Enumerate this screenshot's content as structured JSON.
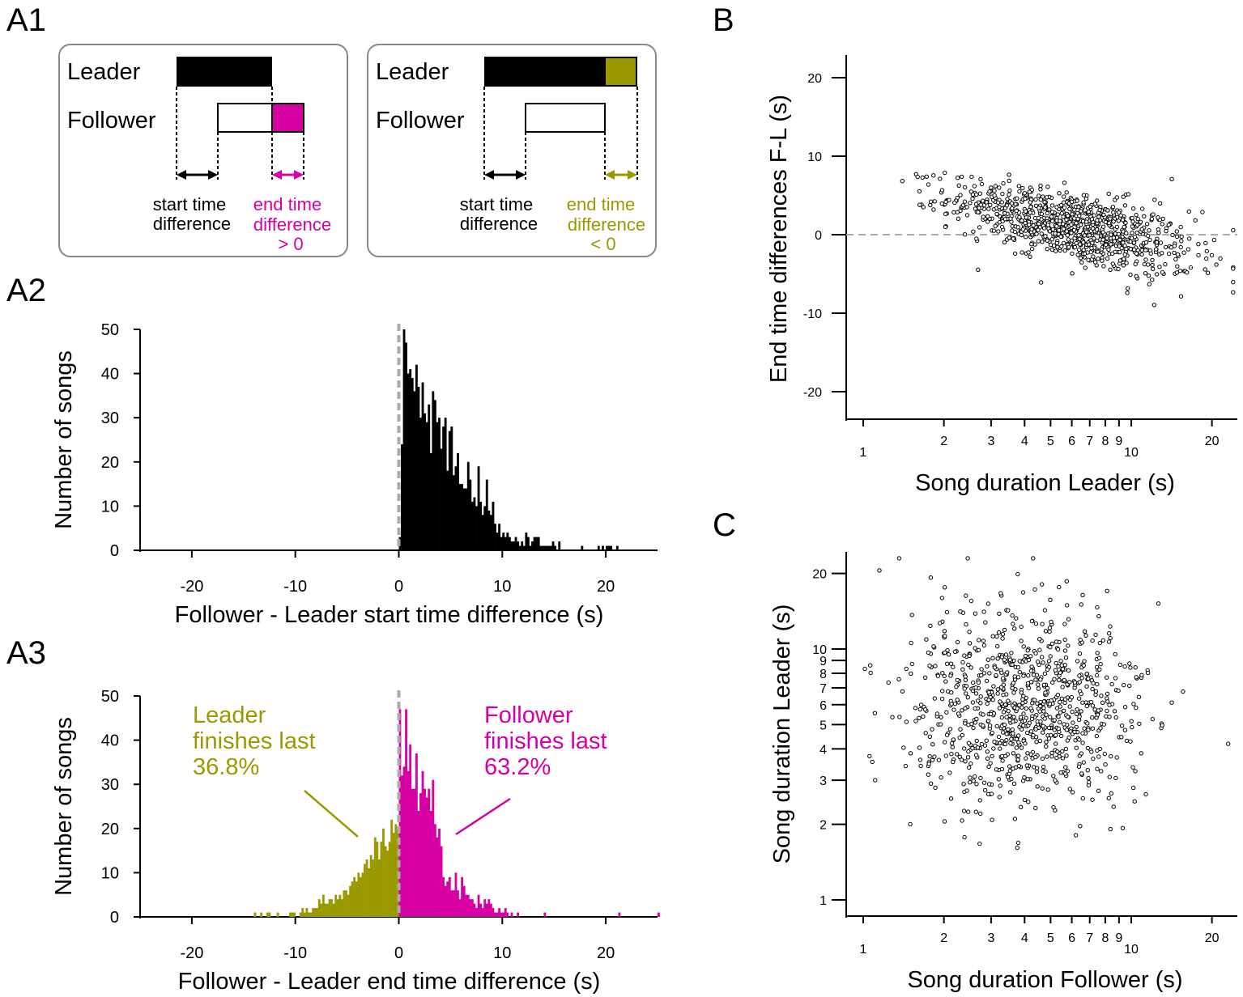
{
  "colors": {
    "olive": "#9a9a00",
    "magenta": "#d600a5",
    "gray": "#aaaaaa",
    "black": "#000000",
    "box": "#888888"
  },
  "panels": {
    "a1": "A1",
    "a2": "A2",
    "a3": "A3",
    "b": "B",
    "c": "C"
  },
  "a1": {
    "left": {
      "leader": "Leader",
      "follower": "Follower",
      "start1": "start time",
      "start2": "difference",
      "end1": "end time",
      "end2": "difference",
      "end3": "> 0"
    },
    "right": {
      "leader": "Leader",
      "follower": "Follower",
      "start1": "start time",
      "start2": "difference",
      "end1": "end time",
      "end2": "difference",
      "end3": "< 0"
    }
  },
  "a3_annotations": {
    "leader1": "Leader",
    "leader2": "finishes last",
    "leader3": "36.8%",
    "follower1": "Follower",
    "follower2": "finishes last",
    "follower3": "63.2%"
  },
  "chart_data": [
    {
      "id": "A2",
      "type": "bar",
      "xlabel": "Follower - Leader start time difference (s)",
      "ylabel": "Number of songs",
      "xlim": [
        -25,
        25
      ],
      "ylim": [
        0,
        50
      ],
      "xticks": [
        -20,
        -10,
        0,
        10,
        20
      ],
      "yticks": [
        0,
        10,
        20,
        30,
        40,
        50
      ],
      "bin_width": 0.2,
      "bin_start": 0,
      "values": [
        3,
        24,
        50,
        47,
        40,
        41,
        39,
        36,
        42,
        37,
        30,
        38,
        31,
        29,
        33,
        22,
        36,
        34,
        29,
        30,
        23,
        28,
        30,
        18,
        27,
        28,
        17,
        19,
        22,
        15,
        15,
        14,
        14,
        20,
        16,
        11,
        12,
        10,
        19,
        11,
        8,
        10,
        16,
        9,
        8,
        11,
        6,
        4,
        6,
        3,
        4,
        3,
        4,
        3,
        2,
        2,
        3,
        2,
        1,
        2,
        1,
        4,
        3,
        1,
        2,
        3,
        3,
        3,
        1,
        1,
        1,
        1,
        1,
        1,
        2,
        1,
        0,
        2,
        0,
        0,
        0,
        0,
        0,
        0,
        0,
        0,
        0,
        0,
        1,
        0,
        0,
        0,
        0,
        0,
        0,
        0,
        1,
        0,
        1,
        0,
        1,
        1,
        1,
        0,
        0,
        1
      ],
      "color": "#000000",
      "zero_line": true
    },
    {
      "id": "A3",
      "type": "bar",
      "xlabel": "Follower - Leader end time difference (s)",
      "ylabel": "Number of songs",
      "xlim": [
        -25,
        25
      ],
      "ylim": [
        0,
        50
      ],
      "xticks": [
        -20,
        -10,
        0,
        10,
        20
      ],
      "yticks": [
        0,
        10,
        20,
        30,
        40,
        50
      ],
      "bin_width": 0.2,
      "negative": {
        "bin_start": -14,
        "color": "#9a9a00",
        "values": [
          1,
          0,
          0,
          1,
          0,
          0,
          1,
          1,
          0,
          0,
          0,
          1,
          0,
          0,
          0,
          0,
          0,
          1,
          1,
          1,
          0,
          0,
          1,
          2,
          1,
          2,
          1,
          1,
          2,
          2,
          2,
          4,
          3,
          5,
          3,
          3,
          4,
          4,
          3,
          5,
          4,
          5,
          4,
          6,
          6,
          5,
          7,
          8,
          9,
          8,
          10,
          9,
          10,
          12,
          13,
          11,
          14,
          13,
          18,
          17,
          13,
          17,
          20,
          16,
          15,
          17,
          22,
          19,
          21,
          20
        ]
      },
      "positive": {
        "bin_start": 0,
        "color": "#d600a5",
        "values": [
          47,
          32,
          34,
          47,
          33,
          39,
          29,
          29,
          37,
          24,
          28,
          33,
          29,
          27,
          29,
          24,
          31,
          21,
          18,
          20,
          16,
          9,
          7,
          8,
          9,
          6,
          6,
          10,
          6,
          4,
          9,
          7,
          5,
          5,
          4,
          4,
          3,
          2,
          5,
          3,
          2,
          4,
          3,
          4,
          3,
          2,
          1,
          1,
          2,
          1,
          1,
          2,
          1,
          0,
          1,
          0,
          0,
          1,
          0,
          0,
          0,
          0,
          0,
          0,
          0,
          0,
          0,
          0,
          0,
          0,
          1,
          0,
          0,
          0,
          0,
          0,
          0,
          0,
          0,
          0,
          0,
          0,
          0,
          0,
          0,
          0,
          0,
          0,
          0,
          0,
          0,
          0,
          0,
          0,
          0,
          0,
          0,
          0,
          0,
          0,
          0,
          0,
          0,
          0,
          0,
          0,
          1,
          0,
          0,
          0,
          0,
          0,
          0,
          0,
          0,
          0,
          0,
          0,
          0,
          0,
          0,
          0,
          0,
          0,
          0,
          1
        ]
      },
      "zero_line": true
    },
    {
      "id": "B",
      "type": "scatter",
      "xlabel": "Song duration Leader (s)",
      "ylabel": "End time differences F-L (s)",
      "xscale": "log",
      "xlim": [
        0.95,
        24
      ],
      "ylim": [
        -24,
        23
      ],
      "xticks": [
        1,
        2,
        3,
        4,
        5,
        6,
        7,
        8,
        9,
        10,
        20
      ],
      "xtick_labels": [
        "1",
        "2",
        "3",
        "4",
        "5",
        "6",
        "7",
        "8",
        "9",
        "10",
        "20"
      ],
      "yticks": [
        -20,
        -10,
        0,
        10,
        20
      ],
      "zero_line": true,
      "distribution": {
        "n": 950,
        "x_median": 6.0,
        "x_log_sd": 0.52,
        "y_center": "1 - 3.4*log(x/6)",
        "y_sd": "1.8 + 0.35*(x/6)"
      }
    },
    {
      "id": "C",
      "type": "scatter",
      "xlabel": "Song duration Follower (s)",
      "ylabel": "Song duration Leader (s)",
      "xscale": "log",
      "yscale": "log",
      "xlim": [
        0.93,
        24
      ],
      "ylim": [
        0.9,
        24
      ],
      "xticks": [
        1,
        2,
        3,
        4,
        5,
        6,
        7,
        8,
        9,
        10,
        20
      ],
      "xtick_labels": [
        "1",
        "2",
        "3",
        "4",
        "5",
        "6",
        "7",
        "8",
        "9",
        "10",
        "20"
      ],
      "yticks": [
        1,
        2,
        3,
        4,
        5,
        6,
        7,
        8,
        9,
        10,
        20
      ],
      "ytick_labels": [
        "1",
        "2",
        "3",
        "4",
        "5",
        "6",
        "7",
        "8",
        "9",
        "10",
        "20"
      ],
      "distribution": {
        "n": 950,
        "x_median": 4.0,
        "x_log_sd": 0.5,
        "y_median": 6.0,
        "y_log_sd": 0.45
      }
    }
  ]
}
